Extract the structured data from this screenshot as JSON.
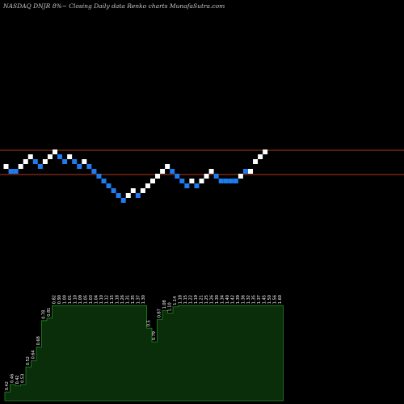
{
  "title": "NASDAQ DNJR 8%~  Closing Daily data  Renko  charts MunafaSutra.com",
  "colors": {
    "background": "#000000",
    "up_brick": "#ffffff",
    "down_brick": "#1e7bf0",
    "resistance_line": "#b03a1c",
    "volume_fill": "#0a2e0a",
    "volume_stroke": "#1f8a1f"
  },
  "chart_data": {
    "type": "renko",
    "bricks": [
      {
        "dir": "up",
        "level": 0
      },
      {
        "dir": "down",
        "level": -1
      },
      {
        "dir": "down",
        "level": -1
      },
      {
        "dir": "up",
        "level": 0
      },
      {
        "dir": "up",
        "level": 1
      },
      {
        "dir": "up",
        "level": 2
      },
      {
        "dir": "down",
        "level": 1
      },
      {
        "dir": "down",
        "level": 0
      },
      {
        "dir": "up",
        "level": 1
      },
      {
        "dir": "up",
        "level": 2
      },
      {
        "dir": "up",
        "level": 3
      },
      {
        "dir": "down",
        "level": 2
      },
      {
        "dir": "down",
        "level": 1
      },
      {
        "dir": "up",
        "level": 2
      },
      {
        "dir": "down",
        "level": 1
      },
      {
        "dir": "down",
        "level": 0
      },
      {
        "dir": "up",
        "level": 1
      },
      {
        "dir": "down",
        "level": 0
      },
      {
        "dir": "down",
        "level": -1
      },
      {
        "dir": "down",
        "level": -2
      },
      {
        "dir": "down",
        "level": -3
      },
      {
        "dir": "down",
        "level": -4
      },
      {
        "dir": "down",
        "level": -5
      },
      {
        "dir": "down",
        "level": -6
      },
      {
        "dir": "down",
        "level": -7
      },
      {
        "dir": "up",
        "level": -6
      },
      {
        "dir": "up",
        "level": -5
      },
      {
        "dir": "down",
        "level": -6
      },
      {
        "dir": "up",
        "level": -5
      },
      {
        "dir": "up",
        "level": -4
      },
      {
        "dir": "up",
        "level": -3
      },
      {
        "dir": "up",
        "level": -2
      },
      {
        "dir": "up",
        "level": -1
      },
      {
        "dir": "up",
        "level": 0
      },
      {
        "dir": "down",
        "level": -1
      },
      {
        "dir": "down",
        "level": -2
      },
      {
        "dir": "down",
        "level": -3
      },
      {
        "dir": "down",
        "level": -4
      },
      {
        "dir": "up",
        "level": -3
      },
      {
        "dir": "down",
        "level": -4
      },
      {
        "dir": "up",
        "level": -3
      },
      {
        "dir": "up",
        "level": -2
      },
      {
        "dir": "up",
        "level": -1
      },
      {
        "dir": "down",
        "level": -2
      },
      {
        "dir": "down",
        "level": -3
      },
      {
        "dir": "down",
        "level": -3
      },
      {
        "dir": "down",
        "level": -3
      },
      {
        "dir": "down",
        "level": -3
      },
      {
        "dir": "up",
        "level": -2
      },
      {
        "dir": "down",
        "level": -1
      },
      {
        "dir": "up",
        "level": -1
      },
      {
        "dir": "up",
        "level": 1
      },
      {
        "dir": "up",
        "level": 2
      },
      {
        "dir": "up",
        "level": 3
      }
    ],
    "reference_lines": [
      186,
      216
    ],
    "volume": {
      "levels": [
        7,
        13,
        12,
        13,
        27,
        32,
        43,
        64,
        66,
        76,
        76,
        76,
        76,
        76,
        76,
        76,
        76,
        76,
        76,
        76,
        76,
        76,
        76,
        76,
        76,
        76,
        76,
        58,
        47,
        65,
        72,
        70,
        75,
        76,
        76,
        76,
        76,
        76,
        76,
        76,
        76,
        76,
        76,
        76,
        76,
        76,
        76,
        76,
        76,
        76,
        76,
        76,
        76
      ],
      "labels": [
        "0.42",
        "0.46",
        "0.42",
        "0.53",
        "0.52",
        "0.64",
        "0.68",
        "0.78",
        "0.81",
        "0.82",
        "0.90",
        "1.00",
        "1.01",
        "1.10",
        "1.09",
        "1.05",
        "1.03",
        "1.04",
        "1.10",
        "1.12",
        "1.15",
        "1.18",
        "1.26",
        "1.31",
        "1.35",
        "1.37",
        "1.30",
        "0.5",
        "0.79",
        "0.87",
        "1.08",
        "1.10",
        "1.14",
        "1.18",
        "1.15",
        "1.22",
        "1.19",
        "1.21",
        "1.25",
        "1.26",
        "1.30",
        "1.34",
        "1.40",
        "1.42",
        "1.39",
        "1.36",
        "1.32",
        "1.35",
        "1.37",
        "1.45",
        "1.50",
        "1.56",
        "1.60"
      ]
    }
  }
}
